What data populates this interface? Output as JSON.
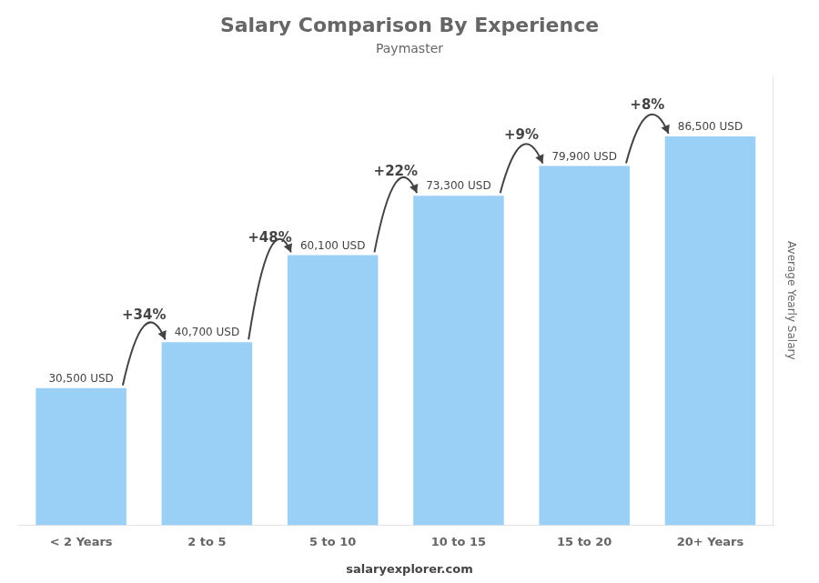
{
  "chart_data": {
    "type": "bar",
    "title": "Salary Comparison By Experience",
    "subtitle": "Paymaster",
    "ylabel": "Average Yearly Salary",
    "categories": [
      "< 2 Years",
      "2 to 5",
      "5 to 10",
      "10 to 15",
      "15 to 20",
      "20+ Years"
    ],
    "values": [
      30500,
      40700,
      60100,
      73300,
      79900,
      86500
    ],
    "value_labels": [
      "30,500 USD",
      "40,700 USD",
      "60,100 USD",
      "73,300 USD",
      "79,900 USD",
      "86,500 USD"
    ],
    "data_labels": true,
    "annotations": [
      "+34%",
      "+48%",
      "+22%",
      "+9%",
      "+8%"
    ],
    "footer": [
      "salary",
      "explorer.com"
    ],
    "ylim": [
      0,
      100000
    ],
    "tick_labels": "x",
    "grid": false
  }
}
